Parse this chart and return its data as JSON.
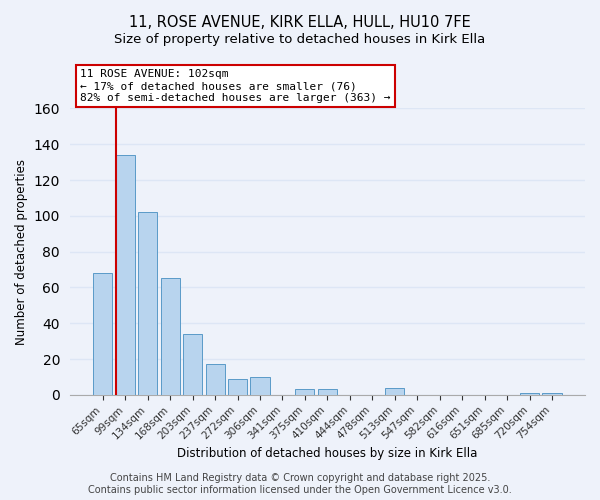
{
  "title": "11, ROSE AVENUE, KIRK ELLA, HULL, HU10 7FE",
  "subtitle": "Size of property relative to detached houses in Kirk Ella",
  "xlabel": "Distribution of detached houses by size in Kirk Ella",
  "ylabel": "Number of detached properties",
  "bar_color": "#b8d4ee",
  "bar_edge_color": "#5a9ac8",
  "highlight_line_color": "#cc0000",
  "highlight_bar_index": 1,
  "categories": [
    "65sqm",
    "99sqm",
    "134sqm",
    "168sqm",
    "203sqm",
    "237sqm",
    "272sqm",
    "306sqm",
    "341sqm",
    "375sqm",
    "410sqm",
    "444sqm",
    "478sqm",
    "513sqm",
    "547sqm",
    "582sqm",
    "616sqm",
    "651sqm",
    "685sqm",
    "720sqm",
    "754sqm"
  ],
  "values": [
    68,
    134,
    102,
    65,
    34,
    17,
    9,
    10,
    0,
    3,
    3,
    0,
    0,
    4,
    0,
    0,
    0,
    0,
    0,
    1,
    1
  ],
  "ylim": [
    0,
    160
  ],
  "yticks": [
    0,
    20,
    40,
    60,
    80,
    100,
    120,
    140,
    160
  ],
  "annotation_title": "11 ROSE AVENUE: 102sqm",
  "annotation_line1": "← 17% of detached houses are smaller (76)",
  "annotation_line2": "82% of semi-detached houses are larger (363) →",
  "footer_line1": "Contains HM Land Registry data © Crown copyright and database right 2025.",
  "footer_line2": "Contains public sector information licensed under the Open Government Licence v3.0.",
  "background_color": "#eef2fa",
  "grid_color": "#dde6f5",
  "title_fontsize": 10.5,
  "subtitle_fontsize": 9.5,
  "axis_label_fontsize": 8.5,
  "tick_fontsize": 7.5,
  "footer_fontsize": 7
}
